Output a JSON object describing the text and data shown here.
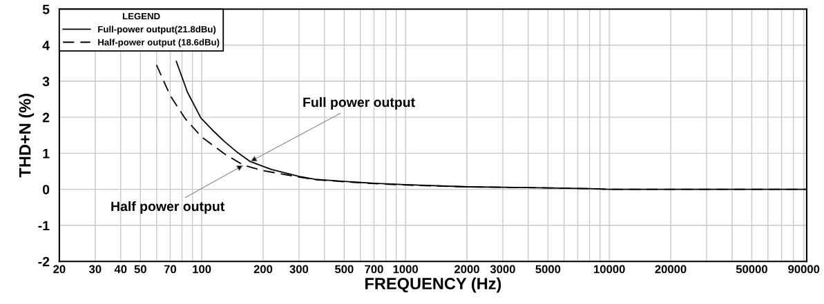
{
  "chart_data": {
    "type": "line",
    "xlabel": "FREQUENCY (Hz)",
    "ylabel": "THD+N (%)",
    "legend_title": "LEGEND",
    "log": "x",
    "grid": true,
    "legend": "top left",
    "marker": "none",
    "xlim": [
      20,
      93000
    ],
    "ylim": [
      -2,
      5
    ],
    "yticks": [
      -2,
      -1,
      0,
      1,
      2,
      3,
      4,
      5
    ],
    "xticks": [
      20,
      30,
      40,
      50,
      {
        "value": 60,
        "label": null
      },
      70,
      {
        "value": 80,
        "label": null
      },
      {
        "value": 90,
        "label": null
      },
      100,
      200,
      300,
      {
        "value": 400,
        "label": null
      },
      500,
      {
        "value": 600,
        "label": null
      },
      700,
      {
        "value": 800,
        "label": null
      },
      {
        "value": 900,
        "label": null
      },
      1000,
      2000,
      3000,
      {
        "value": 4000,
        "label": null
      },
      5000,
      {
        "value": 6000,
        "label": null
      },
      {
        "value": 7000,
        "label": null
      },
      {
        "value": 8000,
        "label": null
      },
      {
        "value": 9000,
        "label": null
      },
      10000,
      20000,
      {
        "value": 30000,
        "label": null
      },
      {
        "value": 40000,
        "label": null
      },
      50000,
      {
        "value": 60000,
        "label": null
      },
      {
        "value": 70000,
        "label": null
      },
      {
        "value": 80000,
        "label": null
      },
      90000
    ],
    "series": [
      {
        "name": "Full-power output(21.8dBu)",
        "color": "#000000",
        "line_style": "solid",
        "x": [
          75,
          85,
          99,
          115,
          129,
          150,
          173,
          220,
          300,
          360,
          500,
          700,
          1000,
          2000,
          5000,
          8000,
          10000,
          20000,
          50000,
          93000
        ],
        "values": [
          3.55,
          2.7,
          1.98,
          1.6,
          1.33,
          1.02,
          0.77,
          0.55,
          0.36,
          0.28,
          0.22,
          0.17,
          0.13,
          0.07,
          0.04,
          0.02,
          0,
          0,
          0,
          0
        ]
      },
      {
        "name": "Half-power output (18.6dBu)",
        "color": "#000000",
        "line_style": "dashed",
        "x": [
          60,
          70,
          83,
          100,
          129,
          160,
          200,
          300,
          360,
          500,
          700,
          1000,
          2000,
          5000,
          8000,
          10000,
          20000,
          50000,
          93000
        ],
        "values": [
          3.45,
          2.6,
          1.96,
          1.45,
          0.99,
          0.67,
          0.52,
          0.34,
          0.27,
          0.21,
          0.16,
          0.12,
          0.07,
          0.04,
          0.02,
          0,
          0,
          0,
          0
        ]
      }
    ],
    "annotations": [
      {
        "text": "Full power output",
        "x": 173,
        "y": 0.77
      },
      {
        "text": "Half power output",
        "x": 160,
        "y": 0.67
      }
    ]
  }
}
